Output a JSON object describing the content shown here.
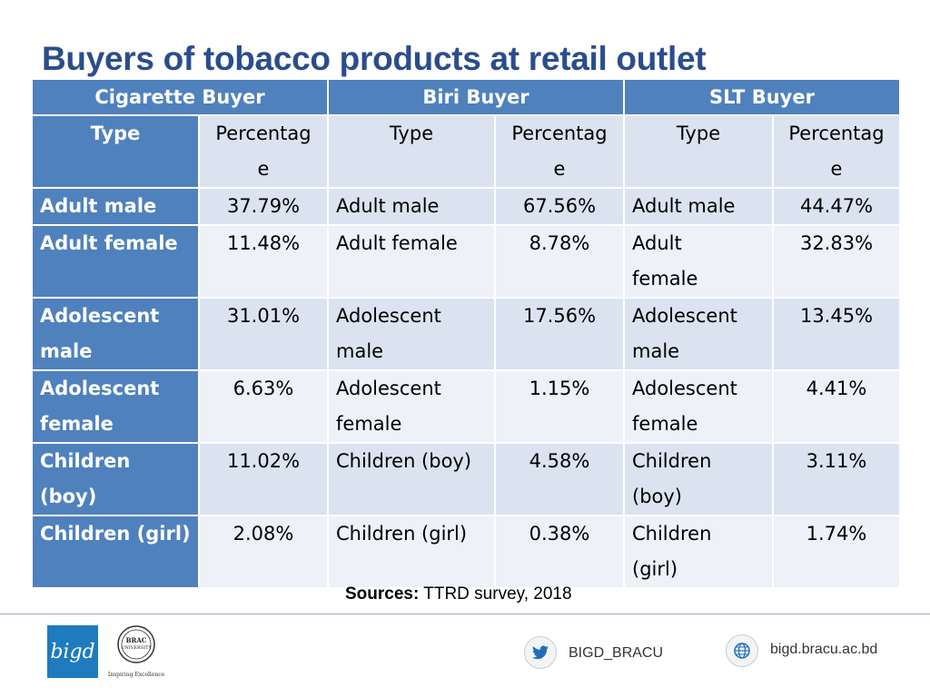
{
  "title": "Buyers of tobacco products at retail outlet",
  "groups": [
    "Cigarette Buyer",
    "Biri Buyer",
    "SLT Buyer"
  ],
  "subheaders": {
    "type": "Type",
    "percentage_a": "Percentag",
    "percentage_b": "e"
  },
  "rows": [
    {
      "cig_type": [
        "Adult male"
      ],
      "cig_pct": "37.79%",
      "biri_type": [
        "Adult male"
      ],
      "biri_pct": "67.56%",
      "slt_type": [
        "Adult male"
      ],
      "slt_pct": "44.47%"
    },
    {
      "cig_type": [
        "Adult female"
      ],
      "cig_pct": "11.48%",
      "biri_type": [
        "Adult female"
      ],
      "biri_pct": "8.78%",
      "slt_type": [
        "Adult",
        "female"
      ],
      "slt_pct": "32.83%"
    },
    {
      "cig_type": [
        "Adolescent",
        "male"
      ],
      "cig_pct": "31.01%",
      "biri_type": [
        "Adolescent",
        "male"
      ],
      "biri_pct": "17.56%",
      "slt_type": [
        "Adolescent",
        "male"
      ],
      "slt_pct": "13.45%"
    },
    {
      "cig_type": [
        "Adolescent",
        "female"
      ],
      "cig_pct": "6.63%",
      "biri_type": [
        "Adolescent",
        "female"
      ],
      "biri_pct": "1.15%",
      "slt_type": [
        "Adolescent",
        "female"
      ],
      "slt_pct": "4.41%"
    },
    {
      "cig_type": [
        "Children (boy)"
      ],
      "cig_pct": "11.02%",
      "biri_type": [
        "Children (boy)"
      ],
      "biri_pct": "4.58%",
      "slt_type": [
        "Children",
        "(boy)"
      ],
      "slt_pct": "3.11%"
    },
    {
      "cig_type": [
        "Children (girl)"
      ],
      "cig_pct": "2.08%",
      "biri_type": [
        "Children (girl)"
      ],
      "biri_pct": "0.38%",
      "slt_type": [
        "Children",
        "(girl)"
      ],
      "slt_pct": "1.74%"
    }
  ],
  "sources": {
    "label": "Sources:",
    "text": " TTRD survey, 2018"
  },
  "footer": {
    "logo_bigd": "bigd",
    "logo_brac": {
      "line1": "BRAC",
      "line2": "UNIVERSITY",
      "tagline": "Inspiring Excellence"
    },
    "twitter_handle": "BIGD_BRACU",
    "website": "bigd.bracu.ac.bd"
  },
  "colors": {
    "header_blue": "#4f81bd",
    "band_dark": "#dbe3f1",
    "band_light": "#eef1f8",
    "title": "#2b4d8c"
  },
  "icons": {
    "twitter": "twitter-icon",
    "globe": "globe-icon"
  }
}
